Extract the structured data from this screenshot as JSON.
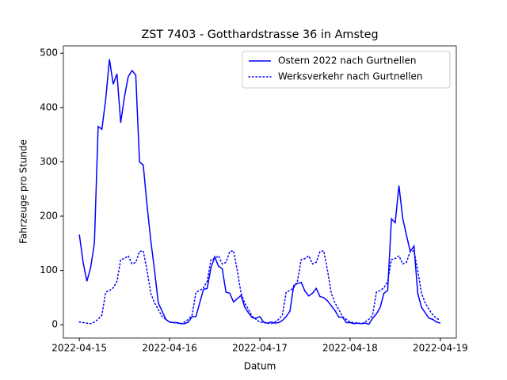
{
  "chart_data": {
    "type": "line",
    "title": "ZST 7403 - Gotthardstrasse 36 in Amsteg",
    "xlabel": "Datum",
    "ylabel": "Fahrzeuge pro Stunde",
    "x": [
      "2022-04-15T00:00",
      "2022-04-15T01:00",
      "2022-04-15T02:00",
      "2022-04-15T03:00",
      "2022-04-15T04:00",
      "2022-04-15T05:00",
      "2022-04-15T06:00",
      "2022-04-15T07:00",
      "2022-04-15T08:00",
      "2022-04-15T09:00",
      "2022-04-15T10:00",
      "2022-04-15T11:00",
      "2022-04-15T12:00",
      "2022-04-15T13:00",
      "2022-04-15T14:00",
      "2022-04-15T15:00",
      "2022-04-15T16:00",
      "2022-04-15T17:00",
      "2022-04-15T18:00",
      "2022-04-15T19:00",
      "2022-04-15T20:00",
      "2022-04-15T21:00",
      "2022-04-15T22:00",
      "2022-04-15T23:00",
      "2022-04-16T00:00",
      "2022-04-16T01:00",
      "2022-04-16T02:00",
      "2022-04-16T03:00",
      "2022-04-16T04:00",
      "2022-04-16T05:00",
      "2022-04-16T06:00",
      "2022-04-16T07:00",
      "2022-04-16T08:00",
      "2022-04-16T09:00",
      "2022-04-16T10:00",
      "2022-04-16T11:00",
      "2022-04-16T12:00",
      "2022-04-16T13:00",
      "2022-04-16T14:00",
      "2022-04-16T15:00",
      "2022-04-16T16:00",
      "2022-04-16T17:00",
      "2022-04-16T18:00",
      "2022-04-16T19:00",
      "2022-04-16T20:00",
      "2022-04-16T21:00",
      "2022-04-16T22:00",
      "2022-04-16T23:00",
      "2022-04-17T00:00",
      "2022-04-17T01:00",
      "2022-04-17T02:00",
      "2022-04-17T03:00",
      "2022-04-17T04:00",
      "2022-04-17T05:00",
      "2022-04-17T06:00",
      "2022-04-17T07:00",
      "2022-04-17T08:00",
      "2022-04-17T09:00",
      "2022-04-17T10:00",
      "2022-04-17T11:00",
      "2022-04-17T12:00",
      "2022-04-17T13:00",
      "2022-04-17T14:00",
      "2022-04-17T15:00",
      "2022-04-17T16:00",
      "2022-04-17T17:00",
      "2022-04-17T18:00",
      "2022-04-17T19:00",
      "2022-04-17T20:00",
      "2022-04-17T21:00",
      "2022-04-17T22:00",
      "2022-04-17T23:00",
      "2022-04-18T00:00",
      "2022-04-18T01:00",
      "2022-04-18T02:00",
      "2022-04-18T03:00",
      "2022-04-18T04:00",
      "2022-04-18T05:00",
      "2022-04-18T06:00",
      "2022-04-18T07:00",
      "2022-04-18T08:00",
      "2022-04-18T09:00",
      "2022-04-18T10:00",
      "2022-04-18T11:00",
      "2022-04-18T12:00",
      "2022-04-18T13:00",
      "2022-04-18T14:00",
      "2022-04-18T15:00",
      "2022-04-18T16:00",
      "2022-04-18T17:00",
      "2022-04-18T18:00",
      "2022-04-18T19:00",
      "2022-04-18T20:00",
      "2022-04-18T21:00",
      "2022-04-18T22:00",
      "2022-04-18T23:00",
      "2022-04-19T00:00"
    ],
    "series": [
      {
        "name": "Ostern 2022 nach Gurtnellen",
        "color": "#0000ff",
        "style": "solid",
        "values": [
          166,
          115,
          80,
          105,
          150,
          365,
          360,
          415,
          489,
          443,
          462,
          372,
          420,
          457,
          468,
          460,
          300,
          294,
          220,
          155,
          100,
          40,
          25,
          10,
          5,
          4,
          4,
          2,
          2,
          5,
          15,
          15,
          40,
          65,
          67,
          105,
          125,
          108,
          103,
          60,
          58,
          42,
          48,
          54,
          32,
          22,
          13,
          12,
          15,
          5,
          3,
          5,
          3,
          4,
          8,
          15,
          25,
          72,
          76,
          78,
          62,
          53,
          58,
          67,
          52,
          50,
          44,
          35,
          26,
          14,
          14,
          4,
          4,
          2,
          3,
          2,
          3,
          1,
          12,
          20,
          32,
          58,
          63,
          195,
          188,
          256,
          196,
          165,
          135,
          145,
          58,
          32,
          22,
          12,
          10,
          5,
          3
        ]
      },
      {
        "name": "Werksverkehr nach Gurtnellen",
        "color": "#0000ff",
        "style": "dotted",
        "values": [
          5,
          4,
          3,
          2,
          5,
          10,
          18,
          60,
          63,
          68,
          80,
          120,
          122,
          127,
          112,
          115,
          135,
          136,
          100,
          58,
          40,
          28,
          15,
          10,
          5,
          4,
          3,
          2,
          5,
          10,
          18,
          60,
          63,
          68,
          80,
          120,
          122,
          127,
          112,
          115,
          135,
          136,
          100,
          58,
          40,
          28,
          15,
          10,
          5,
          4,
          3,
          2,
          5,
          10,
          18,
          60,
          63,
          68,
          80,
          120,
          122,
          127,
          112,
          115,
          135,
          136,
          100,
          58,
          40,
          28,
          15,
          10,
          5,
          4,
          3,
          2,
          5,
          10,
          18,
          60,
          63,
          68,
          80,
          120,
          122,
          127,
          112,
          115,
          135,
          136,
          100,
          58,
          40,
          28,
          18,
          12,
          8
        ]
      }
    ],
    "xlim": [
      "2022-04-14T19:45",
      "2022-04-19T04:15"
    ],
    "xticks": [
      "2022-04-15",
      "2022-04-16",
      "2022-04-17",
      "2022-04-18",
      "2022-04-19"
    ],
    "ylim": [
      -24.45,
      513.45
    ],
    "yticks": [
      0,
      100,
      200,
      300,
      400,
      500
    ],
    "legend": "upper right"
  }
}
